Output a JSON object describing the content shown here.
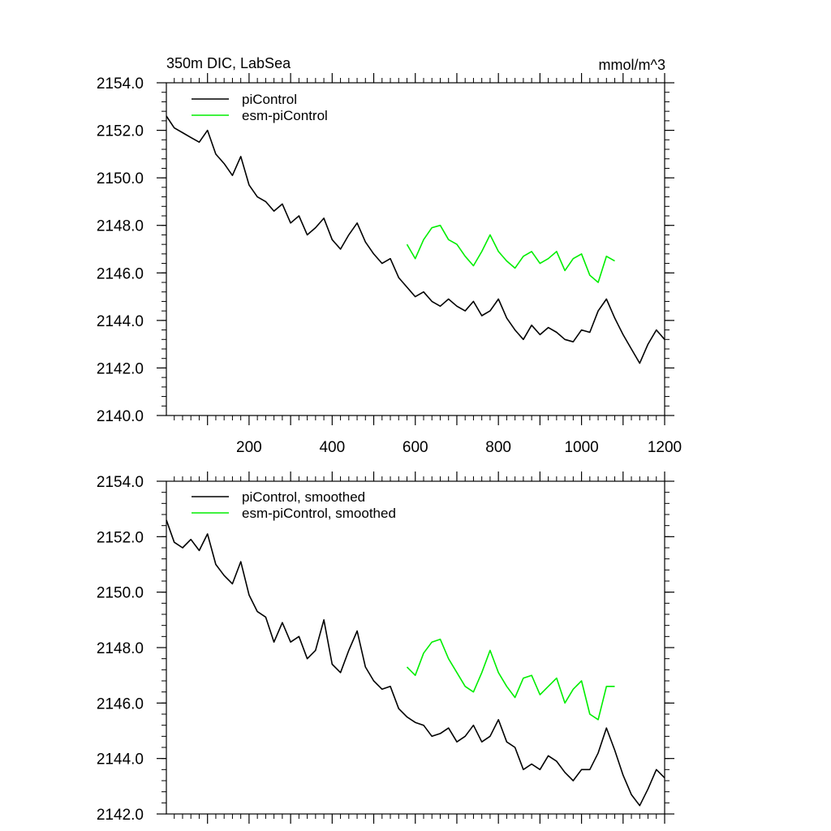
{
  "chart_data": [
    {
      "type": "line",
      "title": "350m DIC, LabSea",
      "units": "mmol/m^3",
      "xlim": [
        1,
        1200
      ],
      "ylim": [
        2140,
        2154
      ],
      "xticks": [
        200,
        400,
        600,
        800,
        1000,
        1200
      ],
      "xtick_labels": [
        "200",
        "400",
        "600",
        "800",
        "1000",
        "1200"
      ],
      "yticks": [
        2140,
        2142,
        2144,
        2146,
        2148,
        2150,
        2152,
        2154
      ],
      "ytick_labels": [
        "2140.0",
        "2142.0",
        "2144.0",
        "2146.0",
        "2148.0",
        "2150.0",
        "2152.0",
        "2154.0"
      ],
      "series": [
        {
          "name": "piControl",
          "color": "#000000",
          "x": [
            1,
            20,
            40,
            60,
            80,
            100,
            120,
            140,
            160,
            180,
            200,
            220,
            240,
            260,
            280,
            300,
            320,
            340,
            360,
            380,
            400,
            420,
            440,
            460,
            480,
            500,
            520,
            540,
            560,
            580,
            600,
            620,
            640,
            660,
            680,
            700,
            720,
            740,
            760,
            780,
            800,
            820,
            840,
            860,
            880,
            900,
            920,
            940,
            960,
            980,
            1000,
            1020,
            1040,
            1060,
            1080,
            1100,
            1120,
            1140,
            1160,
            1180,
            1200
          ],
          "values": [
            2152.6,
            2152.1,
            2151.9,
            2151.7,
            2151.5,
            2152.0,
            2151.0,
            2150.6,
            2150.1,
            2150.9,
            2149.7,
            2149.2,
            2149.0,
            2148.6,
            2148.9,
            2148.1,
            2148.4,
            2147.6,
            2147.9,
            2148.3,
            2147.4,
            2147.0,
            2147.6,
            2148.1,
            2147.3,
            2146.8,
            2146.4,
            2146.6,
            2145.8,
            2145.4,
            2145.0,
            2145.2,
            2144.8,
            2144.6,
            2144.9,
            2144.6,
            2144.4,
            2144.8,
            2144.2,
            2144.4,
            2144.9,
            2144.1,
            2143.6,
            2143.2,
            2143.8,
            2143.4,
            2143.7,
            2143.5,
            2143.2,
            2143.1,
            2143.6,
            2143.5,
            2144.4,
            2144.9,
            2144.1,
            2143.4,
            2142.8,
            2142.2,
            2143.0,
            2143.6,
            2143.2
          ]
        },
        {
          "name": "esm-piControl",
          "color": "#00ee00",
          "x": [
            580,
            600,
            620,
            640,
            660,
            680,
            700,
            720,
            740,
            760,
            780,
            800,
            820,
            840,
            860,
            880,
            900,
            920,
            940,
            960,
            980,
            1000,
            1020,
            1040,
            1060,
            1080
          ],
          "values": [
            2147.2,
            2146.6,
            2147.4,
            2147.9,
            2148.0,
            2147.4,
            2147.2,
            2146.7,
            2146.3,
            2146.9,
            2147.6,
            2146.9,
            2146.5,
            2146.2,
            2146.7,
            2146.9,
            2146.4,
            2146.6,
            2146.9,
            2146.1,
            2146.6,
            2146.8,
            2145.9,
            2145.6,
            2146.7,
            2146.5
          ]
        }
      ]
    },
    {
      "type": "line",
      "title": "",
      "xlim": [
        1,
        1200
      ],
      "ylim": [
        2142,
        2154
      ],
      "xticks": [
        200,
        400,
        600,
        800,
        1000,
        1200
      ],
      "yticks": [
        2142,
        2144,
        2146,
        2148,
        2150,
        2152,
        2154
      ],
      "ytick_labels": [
        "2142.0",
        "2144.0",
        "2146.0",
        "2148.0",
        "2150.0",
        "2152.0",
        "2154.0"
      ],
      "series": [
        {
          "name": "piControl, smoothed",
          "color": "#000000",
          "x": [
            1,
            20,
            40,
            60,
            80,
            100,
            120,
            140,
            160,
            180,
            200,
            220,
            240,
            260,
            280,
            300,
            320,
            340,
            360,
            380,
            400,
            420,
            440,
            460,
            480,
            500,
            520,
            540,
            560,
            580,
            600,
            620,
            640,
            660,
            680,
            700,
            720,
            740,
            760,
            780,
            800,
            820,
            840,
            860,
            880,
            900,
            920,
            940,
            960,
            980,
            1000,
            1020,
            1040,
            1060,
            1080,
            1100,
            1120,
            1140,
            1160,
            1180,
            1200
          ],
          "values": [
            2152.6,
            2151.8,
            2151.6,
            2151.9,
            2151.5,
            2152.1,
            2151.0,
            2150.6,
            2150.3,
            2151.1,
            2149.9,
            2149.3,
            2149.1,
            2148.2,
            2148.9,
            2148.2,
            2148.4,
            2147.6,
            2147.9,
            2149.0,
            2147.4,
            2147.1,
            2147.9,
            2148.6,
            2147.3,
            2146.8,
            2146.5,
            2146.6,
            2145.8,
            2145.5,
            2145.3,
            2145.2,
            2144.8,
            2144.9,
            2145.1,
            2144.6,
            2144.8,
            2145.2,
            2144.6,
            2144.8,
            2145.4,
            2144.6,
            2144.4,
            2143.6,
            2143.8,
            2143.6,
            2144.1,
            2143.9,
            2143.5,
            2143.2,
            2143.6,
            2143.6,
            2144.2,
            2145.1,
            2144.3,
            2143.4,
            2142.7,
            2142.3,
            2142.9,
            2143.6,
            2143.3
          ]
        },
        {
          "name": "esm-piControl, smoothed",
          "color": "#00ee00",
          "x": [
            580,
            600,
            620,
            640,
            660,
            680,
            700,
            720,
            740,
            760,
            780,
            800,
            820,
            840,
            860,
            880,
            900,
            920,
            940,
            960,
            980,
            1000,
            1020,
            1040,
            1060,
            1080
          ],
          "values": [
            2147.3,
            2147.0,
            2147.8,
            2148.2,
            2148.3,
            2147.6,
            2147.1,
            2146.6,
            2146.4,
            2147.1,
            2147.9,
            2147.1,
            2146.6,
            2146.2,
            2146.9,
            2147.0,
            2146.3,
            2146.6,
            2146.9,
            2146.0,
            2146.5,
            2146.8,
            2145.6,
            2145.4,
            2146.6,
            2146.6
          ]
        }
      ]
    }
  ]
}
